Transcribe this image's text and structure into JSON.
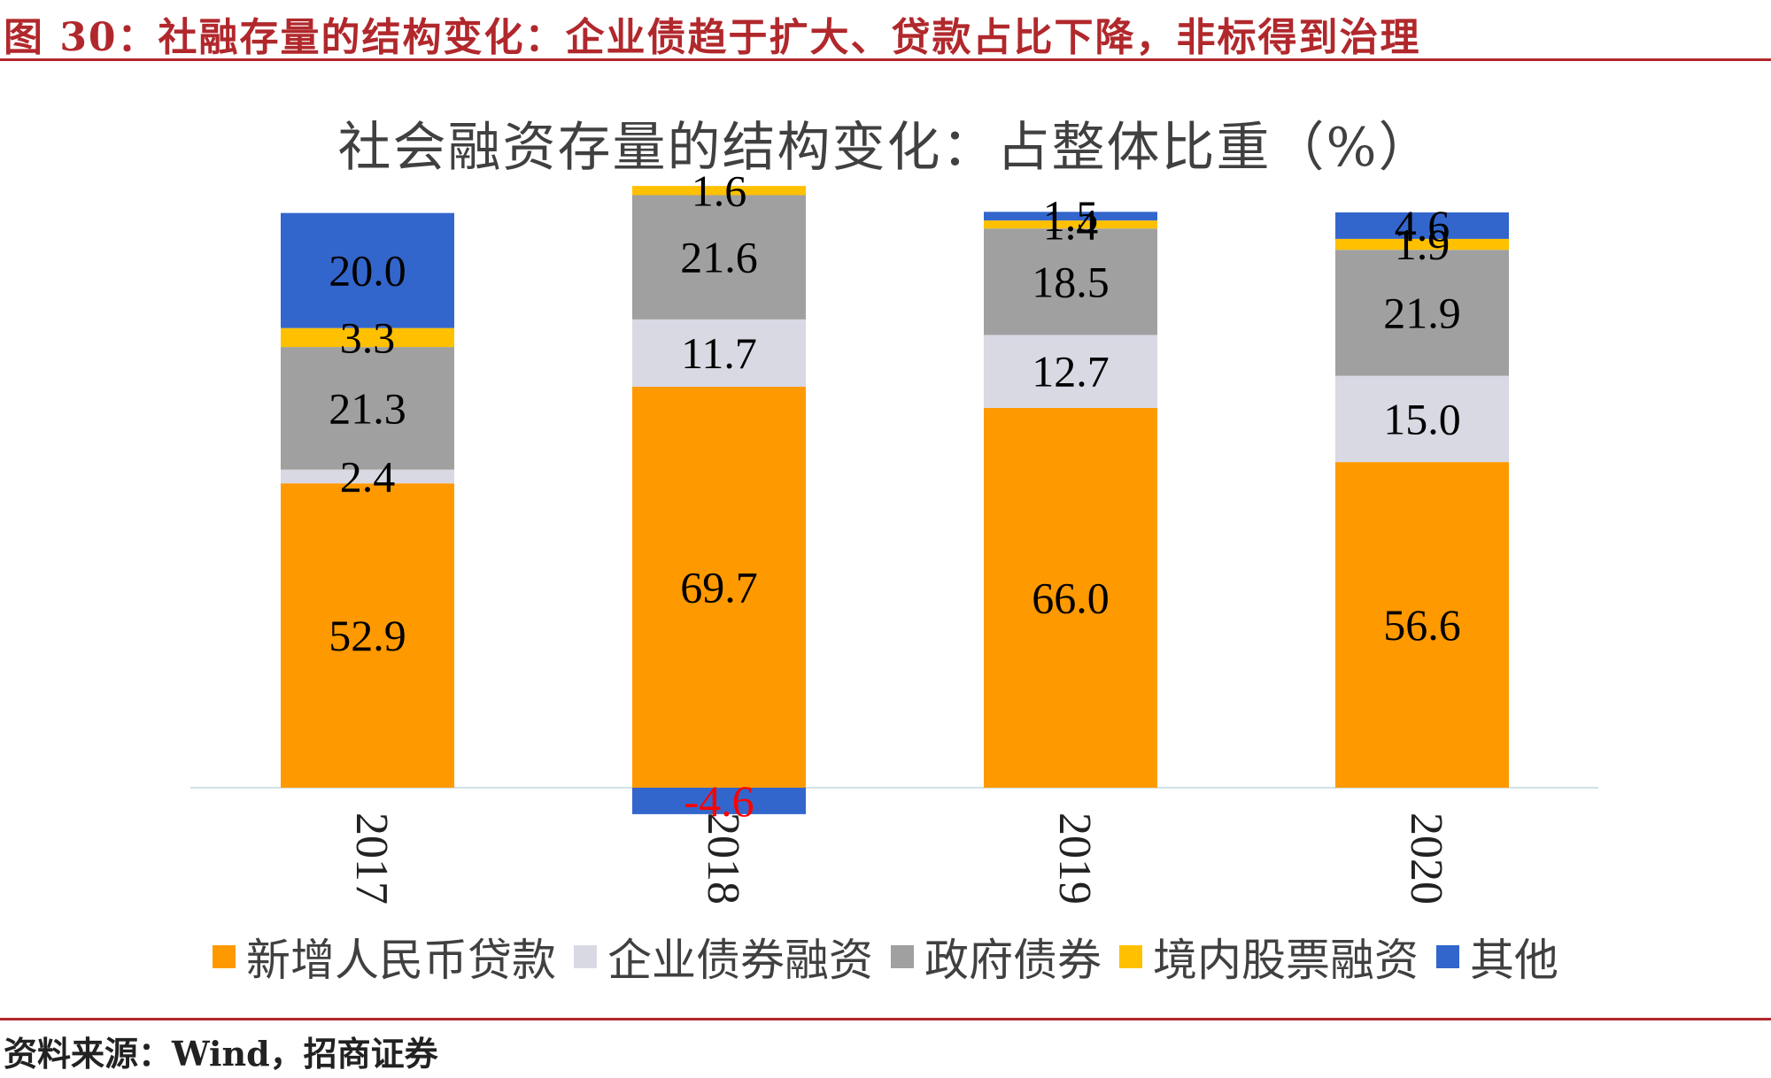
{
  "figure": {
    "title": "图 30：社融存量的结构变化：企业债趋于扩大、贷款占比下降，非标得到治理",
    "source": "资料来源：Wind，招商证券"
  },
  "chart_data": {
    "type": "bar",
    "stacked": true,
    "title": "社会融资存量的结构变化：占整体比重（%）",
    "categories": [
      "2017",
      "2018",
      "2019",
      "2020"
    ],
    "series": [
      {
        "name": "新增人民币贷款",
        "color": "#FF9900",
        "label_color": "#000000",
        "values": [
          52.9,
          69.7,
          66.0,
          56.6
        ]
      },
      {
        "name": "企业债券融资",
        "color": "#D9D9E4",
        "label_color": "#000000",
        "values": [
          2.4,
          11.7,
          12.7,
          15.0
        ]
      },
      {
        "name": "政府债券",
        "color": "#A0A0A0",
        "label_color": "#000000",
        "values": [
          21.3,
          21.6,
          18.5,
          21.9
        ]
      },
      {
        "name": "境内股票融资",
        "color": "#FFC000",
        "label_color": "#000000",
        "values": [
          3.3,
          1.6,
          1.4,
          1.9
        ]
      },
      {
        "name": "其他",
        "color": "#3366CC",
        "label_color": "#000000",
        "values": [
          20.0,
          -4.6,
          1.5,
          4.6
        ]
      }
    ],
    "negative_label_color": "#FF0000",
    "ylim": [
      -4.6,
      100
    ],
    "legend_position": "bottom",
    "xtick_rotation": 90,
    "grid": false
  }
}
